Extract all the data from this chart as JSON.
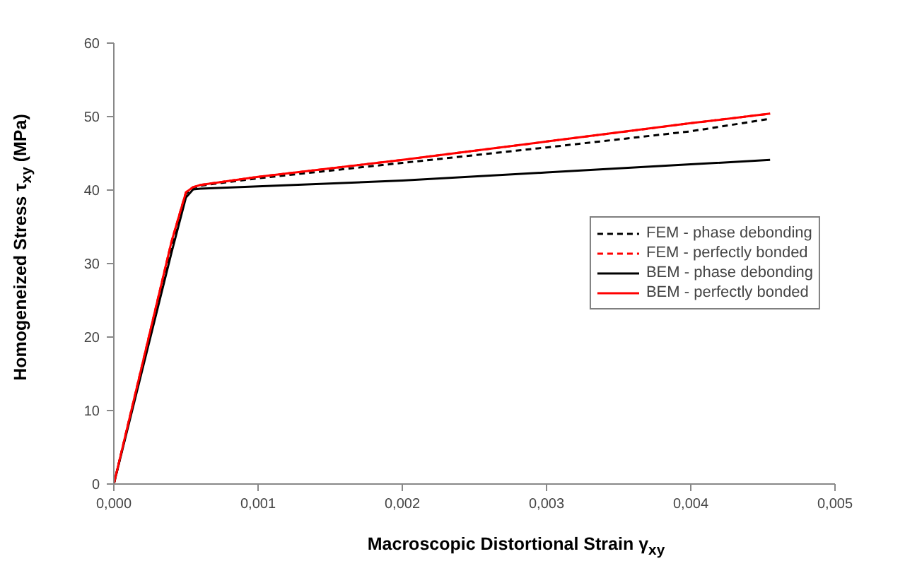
{
  "chart_data": {
    "type": "line",
    "xlabel": "Macroscopic Distortional Strain  γ$_{xy}$",
    "ylabel": "Homogeneized Stress τ$_{xy}$ (MPa)",
    "xlim": [
      0,
      0.005
    ],
    "xticks": [
      {
        "value": 0,
        "label": "0,000"
      },
      {
        "value": 0.001,
        "label": "0,001"
      },
      {
        "value": 0.002,
        "label": "0,002"
      },
      {
        "value": 0.003,
        "label": "0,003"
      },
      {
        "value": 0.004,
        "label": "0,004"
      },
      {
        "value": 0.005,
        "label": "0,005"
      }
    ],
    "ylim": [
      0,
      60
    ],
    "yticks": [
      0,
      10,
      20,
      30,
      40,
      50,
      60
    ],
    "grid": false,
    "legend": "right",
    "marker": "none",
    "series": [
      {
        "name": "FEM - phase debonding",
        "color": "#000000",
        "line_style": "dashed",
        "x": [
          0,
          0.0004,
          0.0005,
          0.00055,
          0.0006,
          0.001,
          0.002,
          0.003,
          0.004,
          0.00455
        ],
        "values": [
          0,
          32.5,
          39.5,
          40.3,
          40.6,
          41.6,
          43.7,
          45.8,
          48.0,
          49.7
        ]
      },
      {
        "name": "FEM - perfectly bonded",
        "color": "#ff0000",
        "line_style": "dashed",
        "x": [
          0,
          0.0004,
          0.0005,
          0.00055,
          0.0006,
          0.001,
          0.002,
          0.003,
          0.004,
          0.00455
        ],
        "values": [
          0,
          33.0,
          39.7,
          40.4,
          40.7,
          41.8,
          44.1,
          46.6,
          49.1,
          50.4
        ]
      },
      {
        "name": "BEM - phase debonding",
        "color": "#000000",
        "line_style": "solid",
        "x": [
          0,
          0.0004,
          0.0005,
          0.00055,
          0.0006,
          0.001,
          0.002,
          0.003,
          0.004,
          0.00455
        ],
        "values": [
          0,
          31.5,
          39.0,
          40.1,
          40.2,
          40.5,
          41.3,
          42.4,
          43.5,
          44.1
        ]
      },
      {
        "name": "BEM - perfectly bonded",
        "color": "#ff0000",
        "line_style": "solid",
        "x": [
          0,
          0.0004,
          0.0005,
          0.00055,
          0.0006,
          0.001,
          0.002,
          0.003,
          0.004,
          0.00455
        ],
        "values": [
          0,
          33.0,
          39.7,
          40.4,
          40.7,
          41.8,
          44.1,
          46.6,
          49.1,
          50.4
        ]
      }
    ]
  }
}
